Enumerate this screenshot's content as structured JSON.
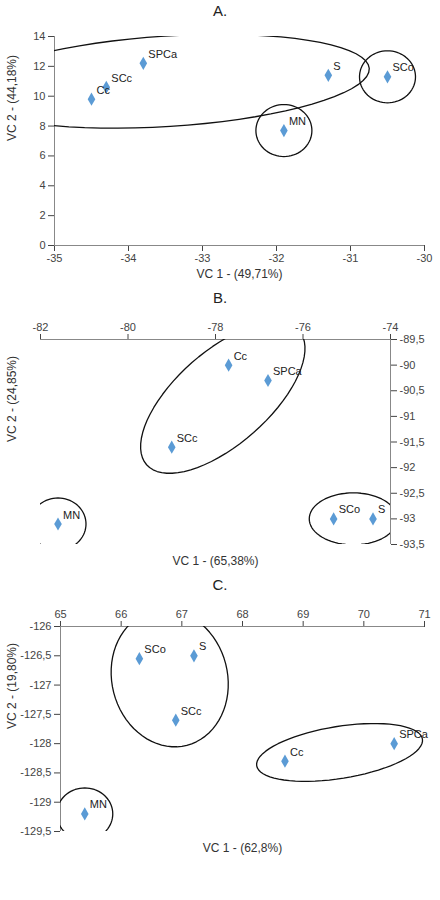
{
  "chart_data": [
    {
      "type": "scatter",
      "title": "A.",
      "x_label": "VC 1 - (49,71%)",
      "y_label": "VC 2 - (44,18%)",
      "labels": [
        "Cc",
        "SCc",
        "SPCa",
        "MN",
        "S",
        "SCo"
      ],
      "x": [
        -34.5,
        -34.3,
        -33.8,
        -31.9,
        -31.3,
        -30.5
      ],
      "y": [
        9.8,
        10.6,
        12.2,
        7.7,
        11.4,
        11.3
      ],
      "groups": [
        [
          "Cc",
          "SCc",
          "SPCa",
          "S"
        ],
        [
          "MN"
        ],
        [
          "SCo"
        ]
      ],
      "color": "#5b9bd5",
      "marker": "diamond",
      "xlim": [
        -35,
        -30
      ],
      "xticks": [
        -35,
        -34,
        -33,
        -32,
        -31,
        -30
      ],
      "ylim": [
        0,
        14
      ],
      "yticks": [
        0,
        2,
        4,
        6,
        8,
        10,
        12,
        14
      ]
    },
    {
      "type": "scatter",
      "title": "B.",
      "x_label": "VC 1 - (65,38%)",
      "y_label": "VC 2 - (24,85%)",
      "labels": [
        "Cc",
        "SPCa",
        "SCc",
        "MN",
        "SCo",
        "S"
      ],
      "x": [
        -77.7,
        -76.8,
        -79.0,
        -81.6,
        -75.3,
        -74.4
      ],
      "y": [
        -90.0,
        -90.3,
        -91.6,
        -93.1,
        -93.0,
        -93.0
      ],
      "groups": [
        [
          "Cc",
          "SPCa",
          "SCc"
        ],
        [
          "MN"
        ],
        [
          "SCo",
          "S"
        ]
      ],
      "color": "#5b9bd5",
      "marker": "diamond",
      "xlim": [
        -82,
        -74
      ],
      "xticks": [
        -82,
        -80,
        -78,
        -76,
        -74
      ],
      "ylim": [
        -93.5,
        -89.5
      ],
      "yticks": [
        {
          "value": -93.5,
          "label": "-93,5"
        },
        -93,
        {
          "value": -92.5,
          "label": "-92,5"
        },
        -92,
        {
          "value": -91.5,
          "label": "-91,5"
        },
        -91,
        {
          "value": -90.5,
          "label": "-90,5"
        },
        -90,
        {
          "value": -89.5,
          "label": "-89,5"
        }
      ]
    },
    {
      "type": "scatter",
      "title": "C.",
      "x_label": "VC 1 - (62,8%)",
      "y_label": "VC 2 - (19,80%)",
      "labels": [
        "SCo",
        "S",
        "SCc",
        "Cc",
        "SPCa",
        "MN"
      ],
      "x": [
        66.3,
        67.2,
        66.9,
        68.7,
        70.5,
        65.4
      ],
      "y": [
        -126.55,
        -126.5,
        -127.6,
        -128.3,
        -128.0,
        -129.2
      ],
      "groups": [
        [
          "SCo",
          "S",
          "SCc"
        ],
        [
          "Cc",
          "SPCa"
        ],
        [
          "MN"
        ]
      ],
      "color": "#5b9bd5",
      "marker": "diamond",
      "xlim": [
        65,
        71
      ],
      "xticks": [
        65,
        66,
        67,
        68,
        69,
        70,
        71
      ],
      "ylim": [
        -129.5,
        -126
      ],
      "yticks": [
        {
          "value": -129.5,
          "label": "-129,5"
        },
        -129,
        {
          "value": -128.5,
          "label": "-128,5"
        },
        -128,
        {
          "value": -127.5,
          "label": "-127,5"
        },
        -127,
        {
          "value": -126.5,
          "label": "-126,5"
        },
        -126
      ]
    }
  ]
}
